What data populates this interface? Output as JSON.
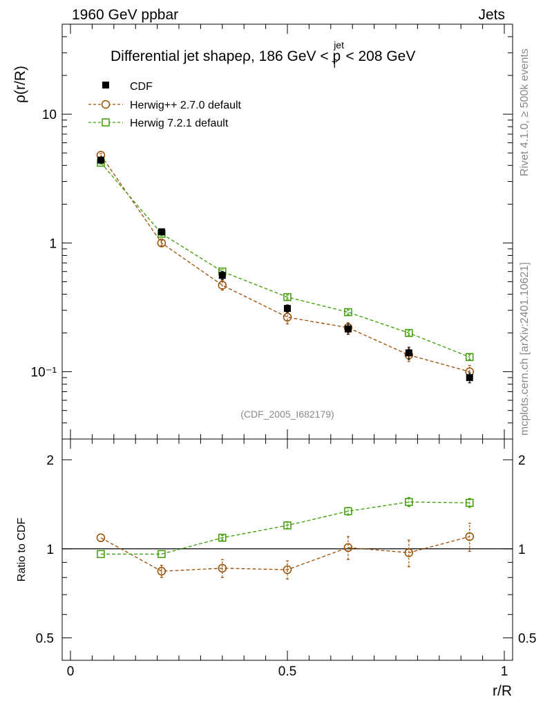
{
  "header": {
    "beam": "1960 GeV ppbar",
    "category": "Jets",
    "side_left": "Rivet 4.1.0, ≥ 500k events",
    "side_right": "mcplots.cern.ch [arXiv:2401.10621]"
  },
  "chart_data": [
    {
      "type": "line",
      "title_main": "Differential jet shapeρ, 186 GeV < p",
      "title_sup": "jet",
      "title_sub": "T",
      "title_tail": " < 208 GeV",
      "xlabel": "r/R",
      "ylabel": "ρ(r/R)",
      "yscale": "log",
      "xlim": [
        0,
        1
      ],
      "ylim": [
        0.03,
        50
      ],
      "analysis_tag": "(CDF_2005_I682179)",
      "xtick_labels": [
        "0",
        "0.5",
        "1"
      ],
      "ytick_labels": [
        "10⁻¹",
        "1",
        "10"
      ],
      "series": [
        {
          "name": "CDF",
          "color": "#000000",
          "marker": "filled-square",
          "x": [
            0.07,
            0.21,
            0.35,
            0.5,
            0.64,
            0.78,
            0.92
          ],
          "values": [
            4.4,
            1.22,
            0.56,
            0.31,
            0.215,
            0.14,
            0.09
          ],
          "errors": [
            0.15,
            0.05,
            0.04,
            0.02,
            0.02,
            0.015,
            0.008
          ]
        },
        {
          "name": "Herwig++ 2.7.0 default",
          "color": "#9a4d00",
          "marker": "open-circle",
          "x": [
            0.07,
            0.21,
            0.35,
            0.5,
            0.64,
            0.78,
            0.92
          ],
          "values": [
            4.8,
            1.0,
            0.47,
            0.265,
            0.22,
            0.135,
            0.1
          ],
          "errors": [
            0.15,
            0.05,
            0.04,
            0.03,
            0.02,
            0.015,
            0.012
          ]
        },
        {
          "name": "Herwig 7.2.1 default",
          "color": "#3d9c00",
          "marker": "open-square",
          "x": [
            0.07,
            0.21,
            0.35,
            0.5,
            0.64,
            0.78,
            0.92
          ],
          "values": [
            4.2,
            1.18,
            0.6,
            0.38,
            0.29,
            0.2,
            0.13
          ],
          "errors": [
            0.1,
            0.04,
            0.02,
            0.015,
            0.012,
            0.008,
            0.006
          ]
        }
      ]
    },
    {
      "type": "line",
      "xlabel": "r/R",
      "ylabel": "Ratio to CDF",
      "yscale": "log",
      "xlim": [
        0,
        1
      ],
      "ylim": [
        0.42,
        2.35
      ],
      "reference": 1,
      "xtick_labels": [
        "0",
        "0.5",
        "1"
      ],
      "ytick_labels": [
        "0.5",
        "1",
        "2"
      ],
      "series": [
        {
          "name": "Herwig++ 2.7.0 default",
          "color": "#9a4d00",
          "marker": "open-circle",
          "x": [
            0.07,
            0.21,
            0.35,
            0.5,
            0.64,
            0.78,
            0.92
          ],
          "values": [
            1.09,
            0.84,
            0.86,
            0.85,
            1.01,
            0.97,
            1.1
          ],
          "errors": [
            0.0,
            0.04,
            0.06,
            0.06,
            0.09,
            0.1,
            0.12
          ]
        },
        {
          "name": "Herwig 7.2.1 default",
          "color": "#3d9c00",
          "marker": "open-square",
          "x": [
            0.07,
            0.21,
            0.35,
            0.5,
            0.64,
            0.78,
            0.92
          ],
          "values": [
            0.96,
            0.96,
            1.09,
            1.2,
            1.34,
            1.44,
            1.43
          ],
          "errors": [
            0.0,
            0.0,
            0.02,
            0.03,
            0.04,
            0.05,
            0.05
          ]
        }
      ]
    }
  ]
}
